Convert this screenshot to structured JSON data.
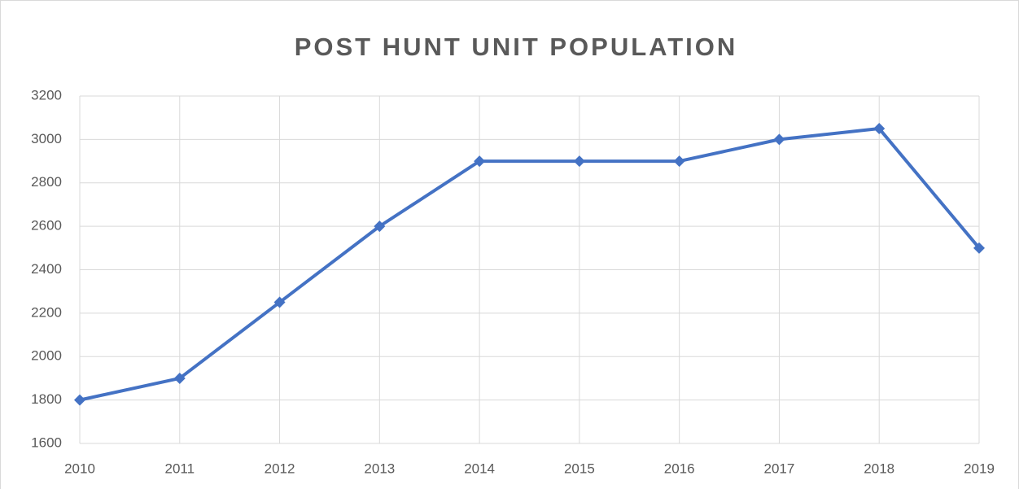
{
  "chart_data": {
    "type": "line",
    "title": "POST HUNT UNIT POPULATION",
    "categories": [
      "2010",
      "2011",
      "2012",
      "2013",
      "2014",
      "2015",
      "2016",
      "2017",
      "2018",
      "2019"
    ],
    "values": [
      1800,
      1900,
      2250,
      2600,
      2900,
      2900,
      2900,
      3000,
      3050,
      2500
    ],
    "color": "#4472c4",
    "ylim": [
      1600,
      3200
    ],
    "yticks": [
      1600,
      1800,
      2000,
      2200,
      2400,
      2600,
      2800,
      3000,
      3200
    ],
    "grid": true
  }
}
